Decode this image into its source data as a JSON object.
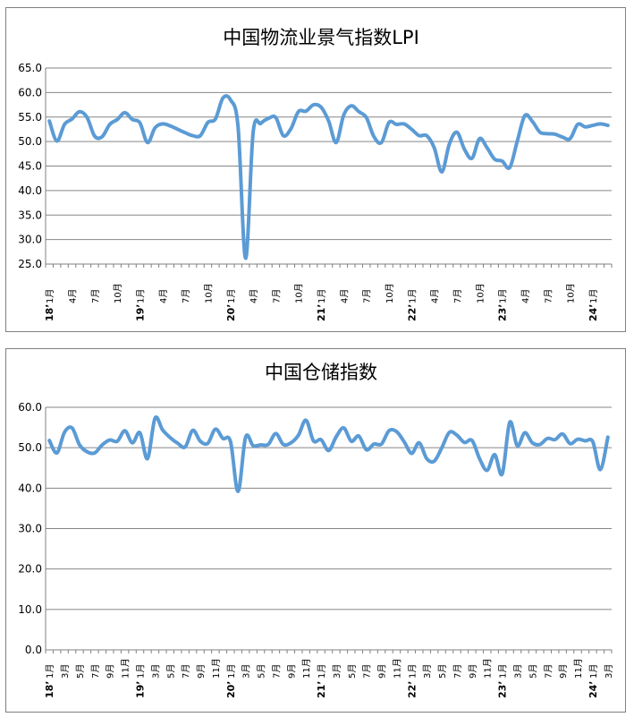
{
  "chart_data": [
    {
      "type": "line",
      "title": "中国物流业景气指数LPI",
      "xlabel": "",
      "ylabel": "",
      "ylim": [
        25,
        65
      ],
      "y_ticks": [
        "25.0",
        "30.0",
        "35.0",
        "40.0",
        "45.0",
        "50.0",
        "55.0",
        "60.0",
        "65.0"
      ],
      "grid": true,
      "legend": "none",
      "line_color": "#5b9bd5",
      "month_labels": [
        "1月",
        "4月",
        "7月",
        "10月",
        "1月",
        "4月",
        "7月",
        "10月",
        "1月",
        "4月",
        "7月",
        "10月",
        "1月",
        "4月",
        "7月",
        "10月",
        "1月",
        "4月",
        "7月",
        "10月",
        "1月",
        "4月",
        "7月",
        "10月",
        "1月"
      ],
      "year_labels": [
        "18’",
        "19’",
        "20’",
        "21’",
        "22’",
        "23’",
        "24’"
      ],
      "x": [
        "2018-01",
        "2018-02",
        "2018-03",
        "2018-04",
        "2018-05",
        "2018-06",
        "2018-07",
        "2018-08",
        "2018-09",
        "2018-10",
        "2018-11",
        "2018-12",
        "2019-01",
        "2019-02",
        "2019-03",
        "2019-04",
        "2019-05",
        "2019-06",
        "2019-07",
        "2019-08",
        "2019-09",
        "2019-10",
        "2019-11",
        "2019-12",
        "2020-01",
        "2020-02",
        "2020-03",
        "2020-04",
        "2020-05",
        "2020-06",
        "2020-07",
        "2020-08",
        "2020-09",
        "2020-10",
        "2020-11",
        "2020-12",
        "2021-01",
        "2021-02",
        "2021-03",
        "2021-04",
        "2021-05",
        "2021-06",
        "2021-07",
        "2021-08",
        "2021-09",
        "2021-10",
        "2021-11",
        "2021-12",
        "2022-01",
        "2022-02",
        "2022-03",
        "2022-04",
        "2022-05",
        "2022-06",
        "2022-07",
        "2022-08",
        "2022-09",
        "2022-10",
        "2022-11",
        "2022-12",
        "2023-01",
        "2023-02",
        "2023-03",
        "2023-04",
        "2023-05",
        "2023-06",
        "2023-07",
        "2023-08",
        "2023-09",
        "2023-10",
        "2023-11",
        "2023-12",
        "2024-01",
        "2024-02",
        "2024-03"
      ],
      "values": [
        54.2,
        50.1,
        53.5,
        54.6,
        56.1,
        54.9,
        51.1,
        51.0,
        53.5,
        54.5,
        55.9,
        54.5,
        53.8,
        49.8,
        52.8,
        53.6,
        53.2,
        52.5,
        51.8,
        51.2,
        51.2,
        53.9,
        54.6,
        58.9,
        58.5,
        53.0,
        26.2,
        51.9,
        53.7,
        54.7,
        54.9,
        51.2,
        52.6,
        56.1,
        56.2,
        57.5,
        57.0,
        54.2,
        49.8,
        55.4,
        57.3,
        56.1,
        54.9,
        51.0,
        49.8,
        53.9,
        53.5,
        53.6,
        52.5,
        51.2,
        51.2,
        48.7,
        43.8,
        49.5,
        51.9,
        48.4,
        46.6,
        50.6,
        48.7,
        46.4,
        46.0,
        44.7,
        50.1,
        55.3,
        54.1,
        51.9,
        51.6,
        51.5,
        50.9,
        50.6,
        53.5,
        53.0,
        53.3,
        53.6,
        53.3
      ]
    },
    {
      "type": "line",
      "title": "中国仓储指数",
      "xlabel": "",
      "ylabel": "",
      "ylim": [
        0,
        60
      ],
      "y_ticks": [
        "0.0",
        "10.0",
        "20.0",
        "30.0",
        "40.0",
        "50.0",
        "60.0"
      ],
      "grid": true,
      "legend": "none",
      "line_color": "#5b9bd5",
      "month_labels": [
        "1月",
        "3月",
        "5月",
        "7月",
        "9月",
        "11月",
        "1月",
        "3月",
        "5月",
        "7月",
        "9月",
        "11月",
        "1月",
        "3月",
        "5月",
        "7月",
        "9月",
        "11月",
        "1月",
        "3月",
        "5月",
        "7月",
        "9月",
        "11月",
        "1月",
        "3月",
        "5月",
        "7月",
        "9月",
        "11月",
        "1月",
        "3月",
        "5月",
        "7月",
        "9月",
        "11月",
        "1月",
        "3月"
      ],
      "year_labels": [
        "18’",
        "19’",
        "20’",
        "21’",
        "22’",
        "23’",
        "24’"
      ],
      "x": [
        "2018-01",
        "2018-02",
        "2018-03",
        "2018-04",
        "2018-05",
        "2018-06",
        "2018-07",
        "2018-08",
        "2018-09",
        "2018-10",
        "2018-11",
        "2018-12",
        "2019-01",
        "2019-02",
        "2019-03",
        "2019-04",
        "2019-05",
        "2019-06",
        "2019-07",
        "2019-08",
        "2019-09",
        "2019-10",
        "2019-11",
        "2019-12",
        "2020-01",
        "2020-02",
        "2020-03",
        "2020-04",
        "2020-05",
        "2020-06",
        "2020-07",
        "2020-08",
        "2020-09",
        "2020-10",
        "2020-11",
        "2020-12",
        "2021-01",
        "2021-02",
        "2021-03",
        "2021-04",
        "2021-05",
        "2021-06",
        "2021-07",
        "2021-08",
        "2021-09",
        "2021-10",
        "2021-11",
        "2021-12",
        "2022-01",
        "2022-02",
        "2022-03",
        "2022-04",
        "2022-05",
        "2022-06",
        "2022-07",
        "2022-08",
        "2022-09",
        "2022-10",
        "2022-11",
        "2022-12",
        "2023-01",
        "2023-02",
        "2023-03",
        "2023-04",
        "2023-05",
        "2023-06",
        "2023-07",
        "2023-08",
        "2023-09",
        "2023-10",
        "2023-11",
        "2023-12",
        "2024-01",
        "2024-02",
        "2024-03"
      ],
      "values": [
        51.8,
        48.7,
        53.8,
        54.9,
        50.7,
        49.0,
        48.7,
        50.7,
        51.9,
        51.6,
        54.2,
        51.2,
        53.7,
        47.3,
        57.3,
        54.4,
        52.5,
        51.1,
        50.2,
        54.3,
        51.6,
        51.1,
        54.6,
        52.3,
        51.5,
        39.2,
        52.6,
        50.5,
        50.7,
        50.8,
        53.5,
        50.8,
        51.2,
        53.1,
        56.8,
        51.7,
        52.0,
        49.3,
        52.7,
        54.9,
        51.6,
        52.9,
        49.5,
        50.9,
        50.9,
        54.2,
        54.0,
        51.5,
        48.6,
        51.2,
        47.3,
        46.7,
        50.0,
        53.8,
        53.1,
        51.3,
        51.8,
        47.3,
        44.4,
        48.3,
        43.5,
        56.3,
        50.5,
        53.7,
        51.2,
        50.8,
        52.3,
        52.0,
        53.4,
        51.0,
        52.1,
        51.7,
        51.5,
        44.6,
        52.6
      ]
    }
  ]
}
